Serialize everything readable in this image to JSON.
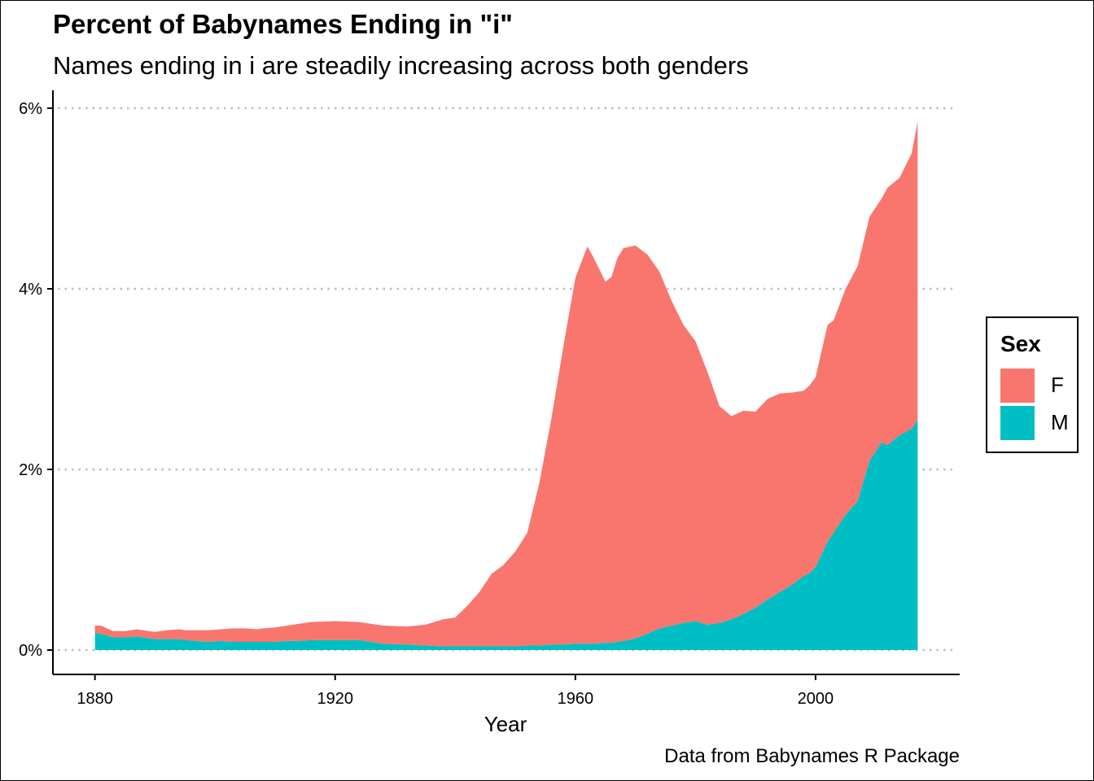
{
  "chart_data": {
    "type": "area",
    "stacked": true,
    "title": "Percent of Babynames Ending in \"i\"",
    "subtitle": "Names ending in i are steadily increasing across both genders",
    "caption": "Data from Babynames R Package",
    "xlabel": "Year",
    "ylabel": "",
    "xlim": [
      1873,
      2024
    ],
    "ylim": [
      0,
      6
    ],
    "x_ticks": [
      1880,
      1920,
      1960,
      2000
    ],
    "x_tick_labels": [
      "1880",
      "1920",
      "1960",
      "2000"
    ],
    "y_ticks": [
      0,
      2,
      4,
      6
    ],
    "y_tick_labels": [
      "0%",
      "2%",
      "4%",
      "6%"
    ],
    "grid": "horizontal-dotted",
    "legend": {
      "title": "Sex",
      "placement": "right",
      "entries": [
        {
          "label": "F",
          "color": "#F8766D"
        },
        {
          "label": "M",
          "color": "#00BFC4"
        }
      ]
    },
    "x": [
      1880,
      1881,
      1882,
      1883,
      1885,
      1887,
      1888,
      1889,
      1890,
      1892,
      1894,
      1895,
      1897,
      1899,
      1901,
      1903,
      1905,
      1907,
      1908,
      1910,
      1912,
      1914,
      1916,
      1920,
      1924,
      1928,
      1932,
      1935,
      1938,
      1940,
      1942,
      1944,
      1946,
      1948,
      1950,
      1952,
      1954,
      1956,
      1958,
      1960,
      1962,
      1963,
      1965,
      1966,
      1967,
      1968,
      1970,
      1972,
      1974,
      1976,
      1978,
      1980,
      1982,
      1984,
      1986,
      1988,
      1990,
      1992,
      1994,
      1996,
      1998,
      1999,
      2000,
      2002,
      2003,
      2005,
      2007,
      2009,
      2011,
      2012,
      2014,
      2016,
      2017
    ],
    "series": [
      {
        "name": "M",
        "color": "#00BFC4",
        "values": [
          0.19,
          0.18,
          0.16,
          0.14,
          0.14,
          0.15,
          0.14,
          0.13,
          0.12,
          0.12,
          0.12,
          0.11,
          0.1,
          0.09,
          0.1,
          0.09,
          0.09,
          0.09,
          0.09,
          0.09,
          0.1,
          0.1,
          0.11,
          0.11,
          0.11,
          0.07,
          0.06,
          0.05,
          0.04,
          0.04,
          0.04,
          0.04,
          0.04,
          0.04,
          0.04,
          0.05,
          0.05,
          0.06,
          0.06,
          0.07,
          0.07,
          0.07,
          0.08,
          0.08,
          0.09,
          0.1,
          0.13,
          0.18,
          0.24,
          0.27,
          0.3,
          0.32,
          0.28,
          0.3,
          0.34,
          0.4,
          0.47,
          0.56,
          0.64,
          0.72,
          0.82,
          0.85,
          0.92,
          1.2,
          1.3,
          1.5,
          1.65,
          2.1,
          2.3,
          2.27,
          2.38,
          2.45,
          2.55
        ]
      },
      {
        "name": "F",
        "color": "#F8766D",
        "values": [
          0.08,
          0.09,
          0.08,
          0.07,
          0.07,
          0.08,
          0.08,
          0.08,
          0.08,
          0.1,
          0.11,
          0.11,
          0.12,
          0.13,
          0.13,
          0.15,
          0.15,
          0.14,
          0.15,
          0.16,
          0.17,
          0.19,
          0.2,
          0.21,
          0.2,
          0.2,
          0.2,
          0.23,
          0.3,
          0.32,
          0.45,
          0.6,
          0.8,
          0.9,
          1.05,
          1.25,
          1.8,
          2.5,
          3.3,
          4.05,
          4.4,
          4.28,
          4.0,
          4.05,
          4.25,
          4.35,
          4.35,
          4.2,
          3.95,
          3.6,
          3.3,
          3.1,
          2.8,
          2.4,
          2.25,
          2.25,
          2.17,
          2.22,
          2.2,
          2.13,
          2.05,
          2.08,
          2.1,
          2.4,
          2.35,
          2.5,
          2.6,
          2.7,
          2.7,
          2.85,
          2.85,
          3.05,
          3.3
        ]
      }
    ]
  }
}
